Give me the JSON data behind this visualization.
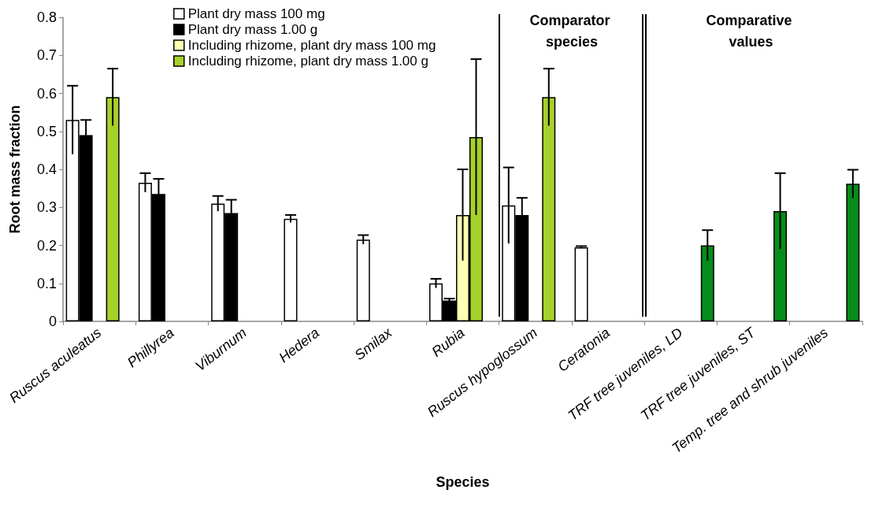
{
  "chart_data": {
    "type": "bar",
    "xlabel": "Species",
    "ylabel": "Root mass fraction",
    "categories": [
      "Ruscus aculeatus",
      "Phillyrea",
      "Viburnum",
      "Hedera",
      "Smilax",
      "Rubia",
      "Ruscus hypoglossum",
      "Ceratonia",
      "TRF tree juveniles, LD",
      "TRF tree juveniles, ST",
      "Temp. tree and shrub juveniles"
    ],
    "series": [
      {
        "name": "Plant dry mass 100 mg",
        "color": "#ffffff",
        "values": [
          0.53,
          0.365,
          0.31,
          0.27,
          0.215,
          0.1,
          0.305,
          0.195,
          null,
          null,
          null
        ],
        "errors": [
          0.09,
          0.025,
          0.02,
          0.01,
          0.012,
          0.012,
          0.1,
          0.003,
          null,
          null,
          null
        ]
      },
      {
        "name": "Plant dry mass 1.00 g",
        "color": "#000000",
        "values": [
          0.49,
          0.335,
          0.285,
          null,
          null,
          0.055,
          0.28,
          null,
          null,
          null,
          null
        ],
        "errors": [
          0.04,
          0.04,
          0.035,
          null,
          null,
          0.005,
          0.045,
          null,
          null,
          null,
          null
        ]
      },
      {
        "name": "Including rhizome, plant dry mass 100 mg",
        "color": "#ffffb3",
        "values": [
          null,
          null,
          null,
          null,
          null,
          0.28,
          null,
          null,
          null,
          null,
          null
        ],
        "errors": [
          null,
          null,
          null,
          null,
          null,
          0.12,
          null,
          null,
          null,
          null,
          null
        ]
      },
      {
        "name": "Including rhizome, plant dry mass 1.00 g",
        "color": "#a6d12a",
        "values": [
          0.59,
          null,
          null,
          null,
          null,
          0.485,
          0.59,
          null,
          null,
          null,
          null
        ],
        "errors": [
          0.075,
          null,
          null,
          null,
          null,
          0.205,
          0.075,
          null,
          null,
          null,
          null
        ]
      },
      {
        "color": "#068c1a",
        "values": [
          null,
          null,
          null,
          null,
          null,
          null,
          null,
          null,
          0.2,
          0.29,
          0.362
        ],
        "errors": [
          null,
          null,
          null,
          null,
          null,
          null,
          null,
          null,
          0.04,
          0.1,
          0.037
        ]
      }
    ],
    "ylim": [
      0,
      0.8
    ],
    "yticks": [
      0,
      0.1,
      0.2,
      0.3,
      0.4,
      0.5,
      0.6,
      0.7,
      0.8
    ],
    "annotations": [
      "Comparator species",
      "Comparative values"
    ],
    "grid": false,
    "legend": "top left"
  }
}
